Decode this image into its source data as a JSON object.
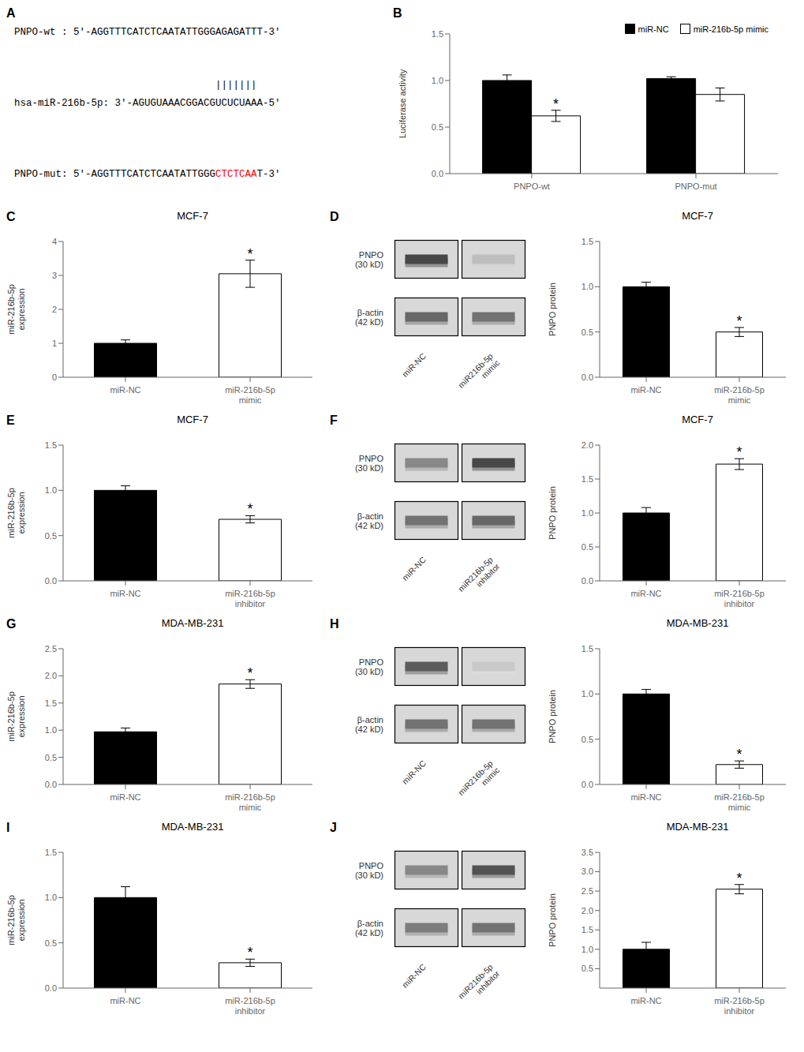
{
  "chart_data": [
    {
      "type": "text",
      "annotations": [
        {
          "text": "A"
        },
        [
          {
            "text": "PNPO-wt : 5′-AGGTTTCATCTCAATATTGGGAGAGATTT-3′"
          }
        ],
        [
          {
            "text": "|||||||"
          }
        ],
        [
          {
            "text": "hsa-miR-216b-5p: 3′-AGUGUAAACGGACGUCUCUAAA-5′"
          }
        ],
        [
          {
            "text": "PNPO-mut: 5′-AGGTTTCATCTCAATATTGGG"
          },
          {
            "text": "CTCTCAA",
            "color": "red"
          },
          {
            "text": "T-3′"
          }
        ]
      ]
    },
    {
      "type": "bar",
      "ylabel": "Luciferase activity",
      "categories": [
        "PNPO-wt",
        "PNPO-mut"
      ],
      "series": [
        {
          "name": "miR-NC",
          "color": "#000000",
          "values": [
            1.0,
            1.02
          ],
          "errors": [
            0.06,
            0.02
          ]
        },
        {
          "name": "miR-216b-5p mimic",
          "color": "#ffffff",
          "values": [
            0.62,
            0.85
          ],
          "errors": [
            0.06,
            0.07
          ]
        }
      ],
      "ylim": [
        0.0,
        1.5
      ],
      "yticks": [
        {
          "value": 0,
          "label": "0.0"
        },
        0.5,
        {
          "value": 1,
          "label": "1.0"
        },
        1.5
      ],
      "legend": "upper right",
      "annotations": [
        {
          "text": "B"
        },
        {
          "text": "*",
          "at": "PNPO-wt",
          "series": "miR-216b-5p mimic"
        }
      ]
    },
    {
      "type": "bar",
      "title": "MCF-7",
      "ylabel": "miR-216b-5p\nexpression",
      "categories": [
        "miR-NC",
        "miR-216b-5p\nmimic"
      ],
      "colors": [
        "#000000",
        "#ffffff"
      ],
      "values": [
        1.0,
        3.05
      ],
      "errors": [
        0.1,
        0.4
      ],
      "ylim": [
        0,
        4
      ],
      "yticks": [
        0,
        1,
        2,
        3,
        4
      ],
      "annotations": [
        {
          "text": "C"
        },
        {
          "text": "*",
          "at": "miR-216b-5p\nmimic"
        }
      ]
    },
    {
      "type": "blot",
      "categories": [
        "miR-NC",
        "miR216b-5p\nmimic"
      ],
      "series": [
        {
          "name": "PNPO\n(30 kD)",
          "values": [
            0.85,
            0.3
          ]
        },
        {
          "name": "β-actin\n(42 kD)",
          "values": [
            0.7,
            0.65
          ]
        }
      ],
      "annotations": [
        {
          "text": "D"
        }
      ]
    },
    {
      "type": "bar",
      "title": "MCF-7",
      "ylabel": "PNPO protein",
      "categories": [
        "miR-NC",
        "miR-216b-5p\nmimic"
      ],
      "colors": [
        "#000000",
        "#ffffff"
      ],
      "values": [
        1.0,
        0.5
      ],
      "errors": [
        0.05,
        0.05
      ],
      "ylim": [
        0,
        1.5
      ],
      "yticks": [
        {
          "value": 0,
          "label": "0.0"
        },
        0.5,
        {
          "value": 1,
          "label": "1.0"
        },
        1.5
      ],
      "annotations": [
        {
          "text": "*",
          "at": "miR-216b-5p\nmimic"
        }
      ]
    },
    {
      "type": "bar",
      "title": "MCF-7",
      "ylabel": "miR-216b-5p\nexpression",
      "categories": [
        "miR-NC",
        "miR-216b-5p\ninhibitor"
      ],
      "colors": [
        "#000000",
        "#ffffff"
      ],
      "values": [
        1.0,
        0.68
      ],
      "errors": [
        0.05,
        0.04
      ],
      "ylim": [
        0,
        1.5
      ],
      "yticks": [
        {
          "value": 0,
          "label": "0.0"
        },
        0.5,
        {
          "value": 1,
          "label": "1.0"
        },
        1.5
      ],
      "annotations": [
        {
          "text": "E"
        },
        {
          "text": "*",
          "at": "miR-216b-5p\ninhibitor"
        }
      ]
    },
    {
      "type": "blot",
      "categories": [
        "miR-NC",
        "miR216b-5p\ninhibitor"
      ],
      "series": [
        {
          "name": "PNPO\n(30 kD)",
          "values": [
            0.55,
            0.85
          ]
        },
        {
          "name": "β-actin\n(42 kD)",
          "values": [
            0.65,
            0.7
          ]
        }
      ],
      "annotations": [
        {
          "text": "F"
        }
      ]
    },
    {
      "type": "bar",
      "title": "MCF-7",
      "ylabel": "PNPO protein",
      "categories": [
        "miR-NC",
        "miR-216b-5p\ninhibitor"
      ],
      "colors": [
        "#000000",
        "#ffffff"
      ],
      "values": [
        1.0,
        1.72
      ],
      "errors": [
        0.08,
        0.08
      ],
      "ylim": [
        0,
        2.0
      ],
      "yticks": [
        {
          "value": 0,
          "label": "0.0"
        },
        0.5,
        {
          "value": 1,
          "label": "1.0"
        },
        1.5,
        {
          "value": 2,
          "label": "2.0"
        }
      ],
      "annotations": [
        {
          "text": "*",
          "at": "miR-216b-5p\ninhibitor"
        }
      ]
    },
    {
      "type": "bar",
      "title": "MDA-MB-231",
      "ylabel": "miR-216b-5p\nexpression",
      "categories": [
        "miR-NC",
        "miR-216b-5p\nmimic"
      ],
      "colors": [
        "#000000",
        "#ffffff"
      ],
      "values": [
        0.97,
        1.85
      ],
      "errors": [
        0.07,
        0.08
      ],
      "ylim": [
        0,
        2.5
      ],
      "yticks": [
        {
          "value": 0,
          "label": "0.0"
        },
        0.5,
        {
          "value": 1,
          "label": "1.0"
        },
        1.5,
        {
          "value": 2,
          "label": "2.0"
        },
        2.5
      ],
      "annotations": [
        {
          "text": "G"
        },
        {
          "text": "*",
          "at": "miR-216b-5p\nmimic"
        }
      ]
    },
    {
      "type": "blot",
      "categories": [
        "miR-NC",
        "miR216b-5p\nmimic"
      ],
      "series": [
        {
          "name": "PNPO\n(30 kD)",
          "values": [
            0.75,
            0.25
          ]
        },
        {
          "name": "β-actin\n(42 kD)",
          "values": [
            0.65,
            0.65
          ]
        }
      ],
      "annotations": [
        {
          "text": "H"
        }
      ]
    },
    {
      "type": "bar",
      "title": "MDA-MB-231",
      "ylabel": "PNPO protein",
      "categories": [
        "miR-NC",
        "miR-216b-5p\nmimic"
      ],
      "colors": [
        "#000000",
        "#ffffff"
      ],
      "values": [
        1.0,
        0.22
      ],
      "errors": [
        0.05,
        0.04
      ],
      "ylim": [
        0,
        1.5
      ],
      "yticks": [
        {
          "value": 0,
          "label": "0.0"
        },
        0.5,
        {
          "value": 1,
          "label": "1.0"
        },
        1.5
      ],
      "annotations": [
        {
          "text": "*",
          "at": "miR-216b-5p\nmimic"
        }
      ]
    },
    {
      "type": "bar",
      "title": "MDA-MB-231",
      "ylabel": "miR-216b-5p\nexpression",
      "categories": [
        "miR-NC",
        "miR-216b-5p\ninhibitor"
      ],
      "colors": [
        "#000000",
        "#ffffff"
      ],
      "values": [
        1.0,
        0.28
      ],
      "errors": [
        0.12,
        0.04
      ],
      "ylim": [
        0,
        1.5
      ],
      "yticks": [
        {
          "value": 0,
          "label": "0.0"
        },
        0.5,
        {
          "value": 1,
          "label": "1.0"
        },
        1.5
      ],
      "annotations": [
        {
          "text": "I"
        },
        {
          "text": "*",
          "at": "miR-216b-5p\ninhibitor"
        }
      ]
    },
    {
      "type": "blot",
      "categories": [
        "miR-NC",
        "miR216b-5p\ninhibitor"
      ],
      "series": [
        {
          "name": "PNPO\n(30 kD)",
          "values": [
            0.55,
            0.8
          ]
        },
        {
          "name": "β-actin\n(42 kD)",
          "values": [
            0.6,
            0.65
          ]
        }
      ],
      "annotations": [
        {
          "text": "J"
        }
      ]
    },
    {
      "type": "bar",
      "title": "MDA-MB-231",
      "ylabel": "PNPO protein",
      "categories": [
        "miR-NC",
        "miR-216b-5p\ninhibitor"
      ],
      "colors": [
        "#000000",
        "#ffffff"
      ],
      "values": [
        1.0,
        2.55
      ],
      "errors": [
        0.18,
        0.12
      ],
      "ylim": [
        0,
        3.5
      ],
      "yticks": [
        0.5,
        {
          "value": 1,
          "label": "1.0"
        },
        1.5,
        {
          "value": 2,
          "label": "2.0"
        },
        2.5,
        {
          "value": 3,
          "label": "3.0"
        },
        3.5
      ],
      "annotations": [
        {
          "text": "*",
          "at": "miR-216b-5p\ninhibitor"
        }
      ]
    }
  ]
}
